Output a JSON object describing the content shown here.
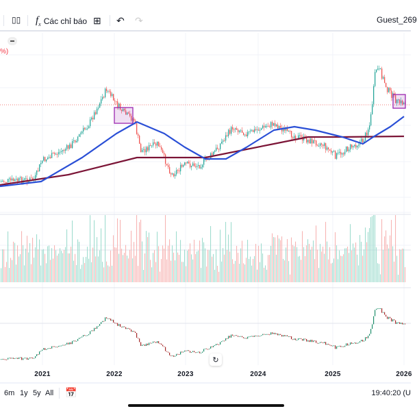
{
  "toolbar": {
    "indicators_label": "Các chỉ báo",
    "user": "Guest_269",
    "icons": [
      "candles-icon",
      "function-icon",
      "layout-grid-icon",
      "undo-icon",
      "redo-icon"
    ]
  },
  "chart": {
    "percent_label": "%)",
    "x_axis": [
      "2021",
      "2022",
      "2023",
      "2024",
      "2025",
      "2026"
    ],
    "colors": {
      "up": "#26a69a",
      "down": "#ef5350",
      "ma_short": "#2a4fd6",
      "ma_long": "#7b1436",
      "highlight": "#9c27b0"
    }
  },
  "bottom": {
    "ranges": [
      "6m",
      "1y",
      "5y",
      "All"
    ],
    "time": "19:40:20 (U"
  }
}
